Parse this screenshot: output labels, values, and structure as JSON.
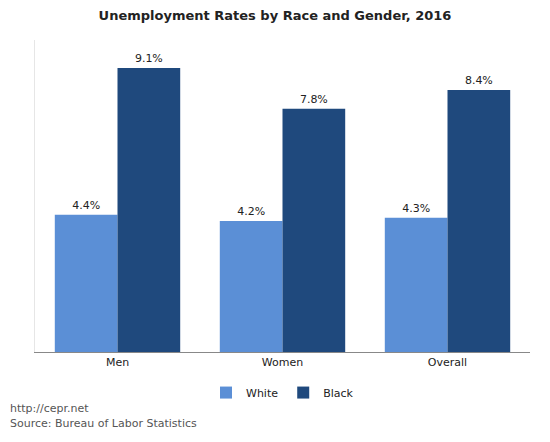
{
  "chart_data": {
    "type": "bar",
    "title": "Unemployment Rates by Race and Gender, 2016",
    "categories": [
      "Men",
      "Women",
      "Overall"
    ],
    "series": [
      {
        "name": "White",
        "color": "#5b8fd6",
        "values": [
          4.4,
          4.2,
          4.3
        ],
        "value_labels": [
          "4.4%",
          "4.2%",
          "4.3%"
        ]
      },
      {
        "name": "Black",
        "color": "#1f497d",
        "values": [
          9.1,
          7.8,
          8.4
        ],
        "value_labels": [
          "9.1%",
          "7.8%",
          "8.4%"
        ]
      }
    ],
    "ylim": [
      0,
      10
    ],
    "grid": false,
    "stacked": false,
    "legend": "bottom",
    "data_labels": true,
    "tick_labels": "x",
    "annotations": [
      "http://cepr.net",
      "Source: Bureau of Labor Statistics"
    ]
  }
}
